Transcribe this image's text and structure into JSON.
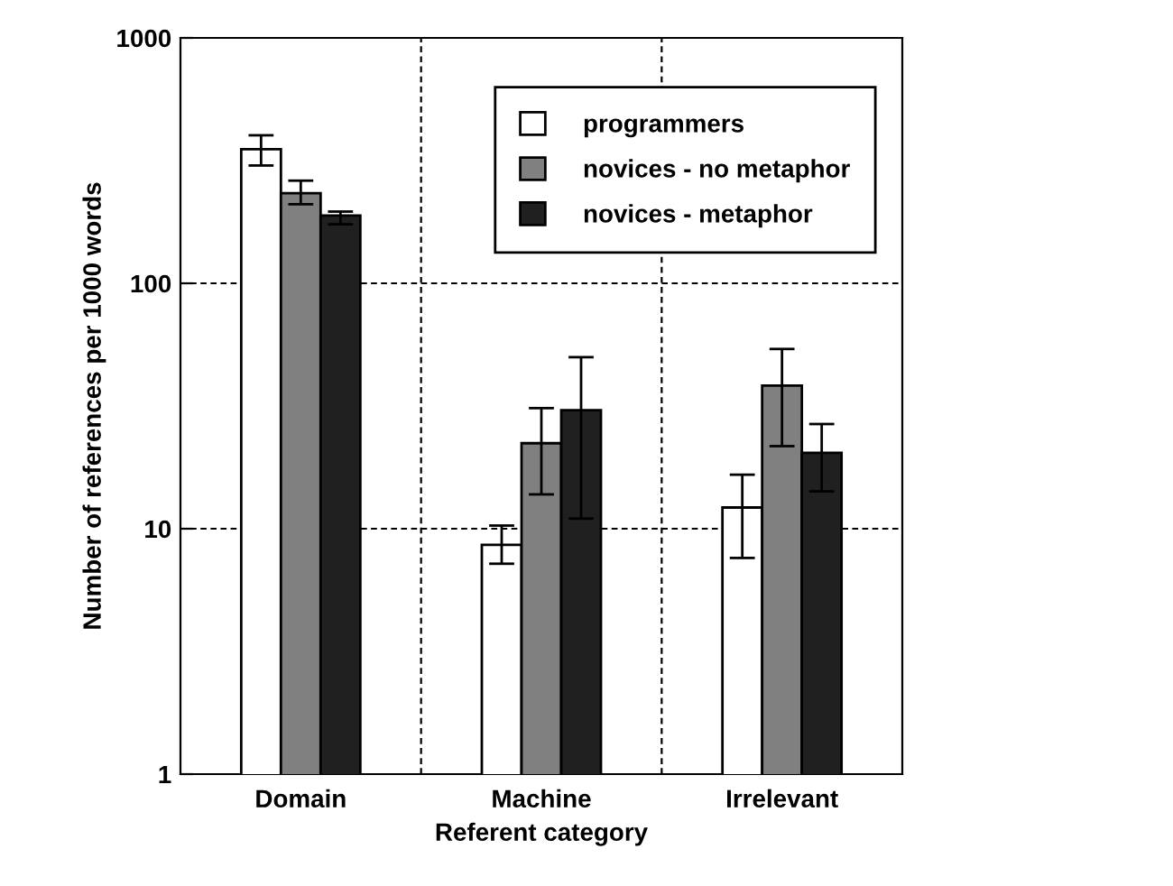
{
  "chart_data": {
    "type": "bar",
    "xlabel": "Referent category",
    "ylabel": "Number of references per 1000 words",
    "categories": [
      "Domain",
      "Machine",
      "Irrelevant"
    ],
    "series": [
      {
        "name": "programmers",
        "color": "#ffffff",
        "values": [
          352,
          8.6,
          12.2
        ],
        "errors": [
          [
            302,
            401
          ],
          [
            7.2,
            10.3
          ],
          [
            7.6,
            16.6
          ]
        ]
      },
      {
        "name": "novices - no metaphor",
        "color": "#808080",
        "values": [
          233,
          22.3,
          38.3
        ],
        "errors": [
          [
            210,
            262
          ],
          [
            13.8,
            31
          ],
          [
            21.7,
            54
          ]
        ]
      },
      {
        "name": "novices - metaphor",
        "color": "#202020",
        "values": [
          189,
          30.4,
          20.4
        ],
        "errors": [
          [
            174,
            196
          ],
          [
            11.0,
            50
          ],
          [
            14.2,
            26.7
          ]
        ]
      }
    ],
    "log": "y",
    "ylim": [
      1,
      1000
    ],
    "yticks": [
      1,
      10,
      100,
      1000
    ],
    "grid": true,
    "legend": "top right"
  }
}
